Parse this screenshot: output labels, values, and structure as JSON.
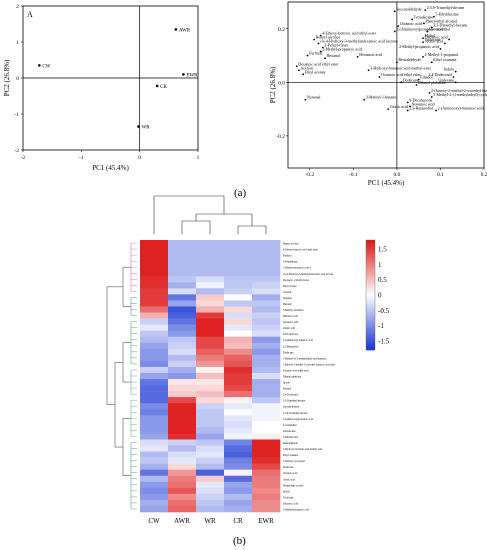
{
  "figure": {
    "label_a": "(a)",
    "label_b": "(b)"
  },
  "chart_data": [
    {
      "type": "scatter",
      "panel_letter": "A",
      "xlabel": "PC1 (45.4%)",
      "ylabel": "PC2 (26.8%)",
      "xlim": [
        -2,
        1
      ],
      "ylim": [
        -2,
        2
      ],
      "xticks": [
        "-2",
        "-1",
        "0",
        "1"
      ],
      "yticks": [
        "-2",
        "-1",
        "0",
        "1",
        "2"
      ],
      "points": [
        {
          "label": "AWR",
          "x": 0.62,
          "y": 1.35
        },
        {
          "label": "CW",
          "x": -1.72,
          "y": 0.35
        },
        {
          "label": "CR",
          "x": 0.3,
          "y": -0.22
        },
        {
          "label": "EWR",
          "x": 0.75,
          "y": 0.1
        },
        {
          "label": "WR",
          "x": -0.02,
          "y": -1.35
        }
      ]
    },
    {
      "type": "scatter",
      "xlabel": "PC1 (45.4%)",
      "ylabel": "PC2 (26.8%)",
      "xlim": [
        -0.25,
        0.2
      ],
      "ylim": [
        -0.32,
        0.3
      ],
      "xticks": [
        "-0.2",
        "-0.1",
        "0.0",
        "0.1",
        "0.2"
      ],
      "yticks": [
        "-0.2",
        "0.0",
        "0.2"
      ],
      "points": [
        {
          "label": "Succinaldehyde",
          "x": -0.005,
          "y": 0.265
        },
        {
          "label": "2,5,9-Trimethyl-decane",
          "x": 0.065,
          "y": 0.27
        },
        {
          "label": "5-Ethyldecane",
          "x": 0.085,
          "y": 0.245
        },
        {
          "label": "Tetradecane",
          "x": 0.035,
          "y": 0.235
        },
        {
          "label": "Phenylethyl alcohol",
          "x": 0.062,
          "y": 0.22
        },
        {
          "label": "Octanoic acid",
          "x": 0.003,
          "y": 0.21
        },
        {
          "label": "3,3-Dimethyl-hexane",
          "x": 0.08,
          "y": 0.205
        },
        {
          "label": "Levomenthol",
          "x": 0.07,
          "y": 0.19
        },
        {
          "label": "2-(Aminooxy)propanoic acid",
          "x": -0.005,
          "y": 0.19
        },
        {
          "label": "4-Ethoxy-benzoic acid ethyl ester",
          "x": -0.175,
          "y": 0.175
        },
        {
          "label": "Maltol",
          "x": 0.06,
          "y": 0.165
        },
        {
          "label": "Decanoic acid",
          "x": 0.12,
          "y": 0.16
        },
        {
          "label": "Benzyl alcohol",
          "x": -0.19,
          "y": 0.16
        },
        {
          "label": "Tridecane",
          "x": 0.06,
          "y": 0.15
        },
        {
          "label": "Acetic acid",
          "x": 0.11,
          "y": 0.145
        },
        {
          "label": "cis-4-Hydroxy-3-methylundecanoic acid lactone",
          "x": -0.18,
          "y": 0.145
        },
        {
          "label": "2-Pentyl-furan",
          "x": -0.17,
          "y": 0.13
        },
        {
          "label": "2-Methyl-propanoic acid",
          "x": 0.1,
          "y": 0.125
        },
        {
          "label": "2-Methyl-propanoic acid",
          "x": -0.175,
          "y": 0.115
        },
        {
          "label": "Furfural",
          "x": -0.205,
          "y": 0.1
        },
        {
          "label": "Hexanal",
          "x": -0.165,
          "y": 0.09
        },
        {
          "label": "Hexanoic acid",
          "x": -0.09,
          "y": 0.095
        },
        {
          "label": "2-Methyl-1-propanol",
          "x": 0.06,
          "y": 0.095
        },
        {
          "label": "Benzaldehyde",
          "x": -0.0,
          "y": 0.075
        },
        {
          "label": "Ethyl oxamate",
          "x": 0.08,
          "y": 0.075
        },
        {
          "label": "Decanoic acid ethyl ester",
          "x": -0.23,
          "y": 0.06
        },
        {
          "label": "Acetoin",
          "x": -0.225,
          "y": 0.045
        },
        {
          "label": "3-Hydroxy-butanoic acid methyl ester",
          "x": -0.065,
          "y": 0.045
        },
        {
          "label": "Indole",
          "x": 0.135,
          "y": 0.04
        },
        {
          "label": "Ethyl acetate",
          "x": -0.215,
          "y": 0.03
        },
        {
          "label": "Octanoic acid ethyl ester",
          "x": -0.04,
          "y": 0.02
        },
        {
          "label": "2,4-Dodecenol",
          "x": 0.13,
          "y": 0.02
        },
        {
          "label": "Ethanol",
          "x": 0.05,
          "y": 0.01
        },
        {
          "label": "Dodecane",
          "x": 0.01,
          "y": 0.0
        },
        {
          "label": "Undecane",
          "x": 0.135,
          "y": 0.0
        },
        {
          "label": "Dibutyl phthalate",
          "x": 0.045,
          "y": -0.01
        },
        {
          "label": "2-(butoxy-2-methyl-2-oxoethyl butanoic acid ester",
          "x": 0.075,
          "y": -0.04
        },
        {
          "label": "5-Methyl-2-(1-methylethyl)-cyclohexanol",
          "x": 0.08,
          "y": -0.055
        },
        {
          "label": "Nonanal",
          "x": -0.21,
          "y": -0.065
        },
        {
          "label": "3-Methyl-1-butanol",
          "x": -0.075,
          "y": -0.065
        },
        {
          "label": "9-Decalactone",
          "x": 0.025,
          "y": -0.075
        },
        {
          "label": "Nonanoic acid",
          "x": 0.03,
          "y": -0.09
        },
        {
          "label": "Oxalic acid",
          "x": -0.02,
          "y": -0.1
        },
        {
          "label": "2,3-Butanediol",
          "x": 0.025,
          "y": -0.105
        },
        {
          "label": "2-(Aminooxy)-butanoic acid",
          "x": 0.09,
          "y": -0.105
        }
      ]
    },
    {
      "type": "heatmap",
      "columns": [
        "CW",
        "AWR",
        "WR",
        "CR",
        "EWR"
      ],
      "colorbar_ticks": [
        "1.5",
        "1",
        "0.5",
        "0",
        "-0.5",
        "-1",
        "-1.5"
      ],
      "colorbar_range": [
        -1.8,
        1.8
      ],
      "rows": [
        {
          "name": "Benzyl alcohol",
          "values": [
            1.7,
            -0.6,
            -0.6,
            -0.6,
            -0.6
          ]
        },
        {
          "name": "4-Ethoxy-benzoic acid ethyl ester",
          "values": [
            1.7,
            -0.6,
            -0.6,
            -0.6,
            -0.6
          ]
        },
        {
          "name": "Furfural",
          "values": [
            1.7,
            -0.6,
            -0.6,
            -0.6,
            -0.6
          ]
        },
        {
          "name": "2-Pentylfuran",
          "values": [
            1.7,
            -0.6,
            -0.6,
            -0.6,
            -0.6
          ]
        },
        {
          "name": "2-Methyl-propanoic acid-1",
          "values": [
            1.7,
            -0.6,
            -0.6,
            -0.6,
            -0.6
          ]
        },
        {
          "name": "cis-4-Hydroxy-3-methylundecanoic acid lactone",
          "values": [
            1.7,
            -0.6,
            -0.6,
            -0.6,
            -0.6
          ]
        },
        {
          "name": "Decanoic acid ethyl ester",
          "values": [
            1.6,
            -0.5,
            -0.3,
            -0.5,
            -0.5
          ]
        },
        {
          "name": "Ethyl acetate",
          "values": [
            1.6,
            -0.7,
            -0.1,
            -0.5,
            -0.4
          ]
        },
        {
          "name": "Acetoin",
          "values": [
            1.5,
            -0.3,
            -0.6,
            -0.4,
            -0.3
          ]
        },
        {
          "name": "Nonanal",
          "values": [
            1.5,
            -1.2,
            0.4,
            0.0,
            -0.7
          ]
        },
        {
          "name": "Hexanal",
          "values": [
            1.5,
            -0.8,
            0.3,
            -0.5,
            -0.5
          ]
        },
        {
          "name": "3-Methyl-1-butanol",
          "values": [
            1.1,
            -1.5,
            0.6,
            0.3,
            -0.6
          ]
        },
        {
          "name": "Hexanoic acid",
          "values": [
            0.6,
            -1.4,
            1.5,
            -0.3,
            -0.4
          ]
        },
        {
          "name": "Nonanoic acid",
          "values": [
            -0.4,
            -1.2,
            1.7,
            0.3,
            -0.5
          ]
        },
        {
          "name": "Oxalic acid",
          "values": [
            -0.2,
            -1.0,
            1.7,
            -0.2,
            -0.4
          ]
        },
        {
          "name": "9-Decalactone",
          "values": [
            -0.5,
            -0.9,
            1.7,
            0.0,
            -0.3
          ]
        },
        {
          "name": "2-(Aminooxy)-butanoic acid",
          "values": [
            -0.6,
            -0.5,
            1.4,
            0.6,
            -0.9
          ]
        },
        {
          "name": "2,3-Butanediol",
          "values": [
            -0.8,
            -0.4,
            1.4,
            0.5,
            -0.7
          ]
        },
        {
          "name": "Dodecane",
          "values": [
            -0.9,
            -0.3,
            1.2,
            0.9,
            -0.9
          ]
        },
        {
          "name": "5-Methyl-2-(1-methylethyl)-cyclohexanol",
          "values": [
            -0.9,
            -0.6,
            1.0,
            1.2,
            -0.7
          ]
        },
        {
          "name": "2-Butoxy-1-methyl-2-oxoethyl butanoic acid ester",
          "values": [
            -1.0,
            -0.4,
            0.8,
            1.3,
            -0.7
          ]
        },
        {
          "name": "Octanoic acid ethyl ester",
          "values": [
            -0.4,
            -0.7,
            0.1,
            1.6,
            -0.6
          ]
        },
        {
          "name": "Dibutyl phthalate",
          "values": [
            -0.8,
            -0.9,
            0.5,
            1.5,
            -0.3
          ]
        },
        {
          "name": "Indole",
          "values": [
            -1.2,
            0.2,
            0.2,
            1.5,
            -0.7
          ]
        },
        {
          "name": "Ethanol",
          "values": [
            -1.3,
            0.3,
            0.3,
            1.4,
            -0.7
          ]
        },
        {
          "name": "2,4-Dodecenol",
          "values": [
            -1.3,
            0.4,
            0.5,
            1.1,
            -0.7
          ]
        },
        {
          "name": "3,3-Dimethyl-hexane",
          "values": [
            -1.3,
            1.4,
            0.3,
            0.1,
            -0.5
          ]
        },
        {
          "name": "Succinaldehyde",
          "values": [
            -1.0,
            1.7,
            -0.4,
            -0.2,
            -0.1
          ]
        },
        {
          "name": "2,5,9-Trimethyl-decane",
          "values": [
            -1.1,
            1.7,
            -0.5,
            0.0,
            -0.1
          ]
        },
        {
          "name": "2-(Aminooxy)propanoic acid",
          "values": [
            -0.9,
            1.7,
            -0.5,
            -0.2,
            -0.1
          ]
        },
        {
          "name": "Levomenthol",
          "values": [
            -0.9,
            1.7,
            -0.5,
            -0.3,
            0.0
          ]
        },
        {
          "name": "Tetradecane",
          "values": [
            -0.9,
            1.7,
            -0.6,
            -0.2,
            0.0
          ]
        },
        {
          "name": "5-Ethyldecane",
          "values": [
            -0.8,
            1.6,
            -0.8,
            -0.1,
            0.1
          ]
        },
        {
          "name": "Benzaldehyde",
          "values": [
            -0.3,
            -0.4,
            -0.5,
            -1.1,
            1.7
          ]
        },
        {
          "name": "3-Hydroxy-butanoic acid methyl ester",
          "values": [
            -0.2,
            -0.6,
            -0.3,
            -1.3,
            1.7
          ]
        },
        {
          "name": "Ethyl oxamate",
          "values": [
            -0.6,
            -0.3,
            -0.2,
            -1.4,
            1.7
          ]
        },
        {
          "name": "2-Methyl-1-propanol",
          "values": [
            -0.5,
            -0.2,
            -0.4,
            -1.1,
            1.6
          ]
        },
        {
          "name": "Dodecane",
          "values": [
            -0.7,
            0.3,
            -0.6,
            -1.0,
            1.4
          ]
        },
        {
          "name": "Octanoic acid",
          "values": [
            -1.2,
            0.8,
            -1.4,
            0.1,
            1.1
          ]
        },
        {
          "name": "Acetic acid",
          "values": [
            -0.6,
            1.0,
            0.4,
            -1.3,
            1.0
          ]
        },
        {
          "name": "Phenylethyl alcohol",
          "values": [
            -0.9,
            1.1,
            -0.2,
            -0.8,
            1.0
          ]
        },
        {
          "name": "Maltol",
          "values": [
            -1.0,
            1.3,
            -0.3,
            -0.9,
            0.9
          ]
        },
        {
          "name": "Tridecane",
          "values": [
            -0.9,
            0.9,
            -0.4,
            -0.6,
            1.0
          ]
        },
        {
          "name": "Decanoic acid",
          "values": [
            -0.7,
            1.1,
            -0.5,
            -0.8,
            0.9
          ]
        },
        {
          "name": "2-Methyl-propanoic acid",
          "values": [
            -0.8,
            1.2,
            -0.6,
            -0.7,
            0.9
          ]
        }
      ]
    }
  ]
}
